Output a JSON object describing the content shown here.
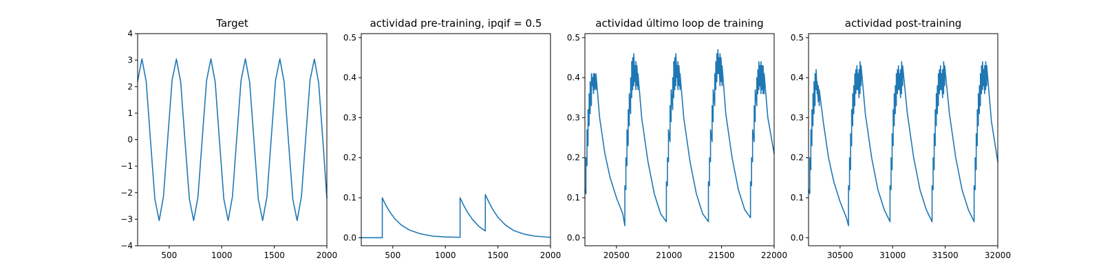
{
  "colors": {
    "series": "#1f77b4",
    "axes": "#000000",
    "background": "#ffffff"
  },
  "chart_data": [
    {
      "type": "line",
      "title": "Target",
      "xlabel": "",
      "ylabel": "",
      "xlim": [
        200,
        2000
      ],
      "ylim": [
        -4,
        4
      ],
      "xticks": [
        500,
        1000,
        1500,
        2000
      ],
      "yticks": [
        -4,
        -3,
        -2,
        -1,
        0,
        1,
        2,
        3,
        4
      ],
      "grid": false,
      "series": [
        {
          "x": [
            200,
            241,
            282,
            323,
            364,
            405,
            446,
            487,
            528,
            569,
            610,
            651,
            692,
            733,
            774,
            815,
            856,
            897,
            938,
            979,
            1020,
            1061,
            1102,
            1143,
            1184,
            1225,
            1266,
            1307,
            1348,
            1389,
            1430,
            1471,
            1512,
            1553,
            1594,
            1635,
            1676,
            1717,
            1758,
            1799,
            1840,
            1881,
            1922,
            1963,
            2000
          ],
          "y": [
            2.2,
            3.05,
            2.18,
            -0.06,
            -2.24,
            -3.05,
            -2.14,
            0.08,
            2.25,
            3.04,
            2.16,
            -0.07,
            -2.23,
            -3.05,
            -2.16,
            0.06,
            2.24,
            3.05,
            2.17,
            -0.07,
            -2.24,
            -3.05,
            -2.15,
            0.07,
            2.24,
            3.05,
            2.16,
            -0.06,
            -2.24,
            -3.05,
            -2.16,
            0.06,
            2.24,
            3.05,
            2.16,
            -0.07,
            -2.24,
            -3.05,
            -2.15,
            0.07,
            2.25,
            3.04,
            2.15,
            -0.07,
            -2.2
          ]
        }
      ]
    },
    {
      "type": "line",
      "title": "actividad pre-training, ipqif = 0.5",
      "xlabel": "",
      "ylabel": "",
      "xlim": [
        200,
        2000
      ],
      "ylim": [
        -0.02,
        0.51
      ],
      "xticks": [
        500,
        1000,
        1500,
        2000
      ],
      "yticks": [
        0.0,
        0.1,
        0.2,
        0.3,
        0.4,
        0.5
      ],
      "yticklabels": [
        "0.0",
        "0.1",
        "0.2",
        "0.3",
        "0.4",
        "0.5"
      ],
      "grid": false,
      "series": [
        {
          "x": [
            200,
            400,
            400,
            430,
            470,
            520,
            580,
            660,
            760,
            880,
            1000,
            1140,
            1140,
            1170,
            1210,
            1260,
            1320,
            1380,
            1380,
            1410,
            1450,
            1500,
            1570,
            1650,
            1750,
            1850,
            2000
          ],
          "y": [
            0.0,
            0.0,
            0.1,
            0.083,
            0.065,
            0.047,
            0.032,
            0.019,
            0.01,
            0.004,
            0.002,
            0.001,
            0.1,
            0.083,
            0.064,
            0.045,
            0.028,
            0.017,
            0.108,
            0.091,
            0.071,
            0.051,
            0.032,
            0.018,
            0.009,
            0.004,
            0.001
          ]
        }
      ]
    },
    {
      "type": "line",
      "title": "actividad último loop de training",
      "xlabel": "",
      "ylabel": "",
      "xlim": [
        20200,
        22000
      ],
      "ylim": [
        -0.02,
        0.51
      ],
      "xticks": [
        20500,
        21000,
        21500,
        22000
      ],
      "yticks": [
        0.0,
        0.1,
        0.2,
        0.3,
        0.4,
        0.5
      ],
      "yticklabels": [
        "0.0",
        "0.1",
        "0.2",
        "0.3",
        "0.4",
        "0.5"
      ],
      "grid": false,
      "series": [
        {
          "x": [
            20200,
            20210,
            20210,
            20220,
            20220,
            20230,
            20230,
            20240,
            20240,
            20250,
            20250,
            20262,
            20262,
            20272,
            20272,
            20282,
            20282,
            20292,
            20292,
            20305,
            20305,
            20340,
            20390,
            20440,
            20500,
            20560,
            20580,
            20580,
            20590,
            20590,
            20600,
            20600,
            20612,
            20612,
            20622,
            20622,
            20635,
            20635,
            20645,
            20645,
            20655,
            20655,
            20665,
            20665,
            20675,
            20675,
            20685,
            20685,
            20695,
            20695,
            20705,
            20705,
            20740,
            20800,
            20860,
            20920,
            20975,
            20975,
            20985,
            20985,
            20995,
            20995,
            21010,
            21010,
            21020,
            21020,
            21035,
            21035,
            21045,
            21045,
            21055,
            21055,
            21065,
            21065,
            21075,
            21075,
            21085,
            21085,
            21095,
            21095,
            21105,
            21105,
            21140,
            21200,
            21260,
            21320,
            21375,
            21375,
            21385,
            21385,
            21395,
            21395,
            21410,
            21410,
            21420,
            21420,
            21435,
            21435,
            21445,
            21445,
            21455,
            21455,
            21465,
            21465,
            21475,
            21475,
            21485,
            21485,
            21495,
            21495,
            21505,
            21505,
            21540,
            21600,
            21660,
            21720,
            21775,
            21775,
            21785,
            21785,
            21795,
            21795,
            21810,
            21810,
            21820,
            21820,
            21835,
            21835,
            21845,
            21845,
            21855,
            21855,
            21865,
            21865,
            21875,
            21875,
            21885,
            21885,
            21895,
            21895,
            21905,
            21905,
            21940,
            22000
          ],
          "y": [
            0.12,
            0.11,
            0.2,
            0.18,
            0.27,
            0.23,
            0.32,
            0.28,
            0.36,
            0.31,
            0.39,
            0.33,
            0.41,
            0.38,
            0.4,
            0.36,
            0.41,
            0.37,
            0.41,
            0.37,
            0.41,
            0.3,
            0.21,
            0.15,
            0.1,
            0.06,
            0.03,
            0.13,
            0.12,
            0.2,
            0.18,
            0.27,
            0.23,
            0.32,
            0.28,
            0.36,
            0.31,
            0.4,
            0.35,
            0.44,
            0.37,
            0.45,
            0.38,
            0.46,
            0.39,
            0.43,
            0.37,
            0.44,
            0.38,
            0.43,
            0.37,
            0.41,
            0.3,
            0.19,
            0.11,
            0.06,
            0.04,
            0.14,
            0.13,
            0.2,
            0.19,
            0.27,
            0.24,
            0.33,
            0.29,
            0.37,
            0.32,
            0.4,
            0.35,
            0.44,
            0.37,
            0.45,
            0.38,
            0.46,
            0.4,
            0.43,
            0.37,
            0.44,
            0.38,
            0.43,
            0.37,
            0.41,
            0.3,
            0.19,
            0.11,
            0.06,
            0.04,
            0.14,
            0.13,
            0.2,
            0.19,
            0.27,
            0.24,
            0.33,
            0.29,
            0.37,
            0.33,
            0.41,
            0.37,
            0.44,
            0.39,
            0.46,
            0.41,
            0.47,
            0.41,
            0.45,
            0.38,
            0.46,
            0.39,
            0.45,
            0.38,
            0.43,
            0.31,
            0.2,
            0.12,
            0.07,
            0.05,
            0.14,
            0.13,
            0.2,
            0.19,
            0.27,
            0.24,
            0.33,
            0.29,
            0.37,
            0.33,
            0.4,
            0.36,
            0.42,
            0.37,
            0.44,
            0.38,
            0.43,
            0.36,
            0.44,
            0.37,
            0.43,
            0.36,
            0.43,
            0.36,
            0.41,
            0.3,
            0.21
          ]
        }
      ]
    },
    {
      "type": "line",
      "title": "actividad post-training",
      "xlabel": "",
      "ylabel": "",
      "xlim": [
        30200,
        32000
      ],
      "ylim": [
        -0.02,
        0.51
      ],
      "xticks": [
        30500,
        31000,
        31500,
        32000
      ],
      "yticks": [
        0.0,
        0.1,
        0.2,
        0.3,
        0.4,
        0.5
      ],
      "yticklabels": [
        "0.0",
        "0.1",
        "0.2",
        "0.3",
        "0.4",
        "0.5"
      ],
      "grid": false,
      "series": [
        {
          "x": [
            30200,
            30212,
            30212,
            30222,
            30222,
            30232,
            30232,
            30242,
            30242,
            30252,
            30252,
            30262,
            30262,
            30272,
            30272,
            30282,
            30282,
            30292,
            30292,
            30302,
            30302,
            30340,
            30390,
            30440,
            30500,
            30560,
            30580,
            30580,
            30590,
            30590,
            30600,
            30600,
            30610,
            30610,
            30620,
            30620,
            30630,
            30630,
            30640,
            30640,
            30650,
            30650,
            30660,
            30660,
            30670,
            30670,
            30680,
            30680,
            30690,
            30690,
            30700,
            30700,
            30740,
            30800,
            30860,
            30920,
            30975,
            30975,
            30985,
            30985,
            30995,
            30995,
            31005,
            31005,
            31015,
            31015,
            31025,
            31025,
            31035,
            31035,
            31045,
            31045,
            31055,
            31055,
            31065,
            31065,
            31075,
            31075,
            31085,
            31085,
            31095,
            31095,
            31140,
            31200,
            31260,
            31320,
            31375,
            31375,
            31385,
            31385,
            31395,
            31395,
            31405,
            31405,
            31415,
            31415,
            31425,
            31425,
            31435,
            31435,
            31445,
            31445,
            31455,
            31455,
            31465,
            31465,
            31475,
            31475,
            31485,
            31485,
            31495,
            31495,
            31540,
            31600,
            31660,
            31720,
            31775,
            31775,
            31785,
            31785,
            31795,
            31795,
            31805,
            31805,
            31815,
            31815,
            31825,
            31825,
            31835,
            31835,
            31845,
            31845,
            31855,
            31855,
            31865,
            31865,
            31875,
            31875,
            31885,
            31885,
            31895,
            31895,
            31940,
            32000
          ],
          "y": [
            0.12,
            0.11,
            0.2,
            0.17,
            0.27,
            0.23,
            0.32,
            0.28,
            0.36,
            0.31,
            0.39,
            0.33,
            0.41,
            0.37,
            0.42,
            0.36,
            0.39,
            0.34,
            0.38,
            0.33,
            0.37,
            0.29,
            0.2,
            0.14,
            0.09,
            0.05,
            0.03,
            0.13,
            0.12,
            0.2,
            0.17,
            0.26,
            0.23,
            0.32,
            0.28,
            0.36,
            0.31,
            0.38,
            0.33,
            0.41,
            0.36,
            0.42,
            0.37,
            0.43,
            0.37,
            0.41,
            0.35,
            0.42,
            0.36,
            0.44,
            0.38,
            0.43,
            0.31,
            0.2,
            0.12,
            0.07,
            0.04,
            0.13,
            0.12,
            0.2,
            0.17,
            0.26,
            0.23,
            0.32,
            0.28,
            0.36,
            0.31,
            0.38,
            0.33,
            0.41,
            0.36,
            0.42,
            0.37,
            0.43,
            0.37,
            0.41,
            0.35,
            0.42,
            0.36,
            0.44,
            0.38,
            0.43,
            0.31,
            0.2,
            0.12,
            0.07,
            0.04,
            0.13,
            0.12,
            0.2,
            0.17,
            0.26,
            0.23,
            0.32,
            0.28,
            0.36,
            0.31,
            0.38,
            0.33,
            0.41,
            0.36,
            0.42,
            0.37,
            0.43,
            0.37,
            0.41,
            0.35,
            0.42,
            0.36,
            0.44,
            0.38,
            0.43,
            0.31,
            0.2,
            0.12,
            0.07,
            0.04,
            0.13,
            0.12,
            0.2,
            0.17,
            0.26,
            0.23,
            0.32,
            0.28,
            0.36,
            0.31,
            0.38,
            0.33,
            0.41,
            0.36,
            0.43,
            0.37,
            0.44,
            0.38,
            0.42,
            0.36,
            0.43,
            0.37,
            0.44,
            0.38,
            0.43,
            0.29,
            0.19
          ]
        }
      ]
    }
  ]
}
